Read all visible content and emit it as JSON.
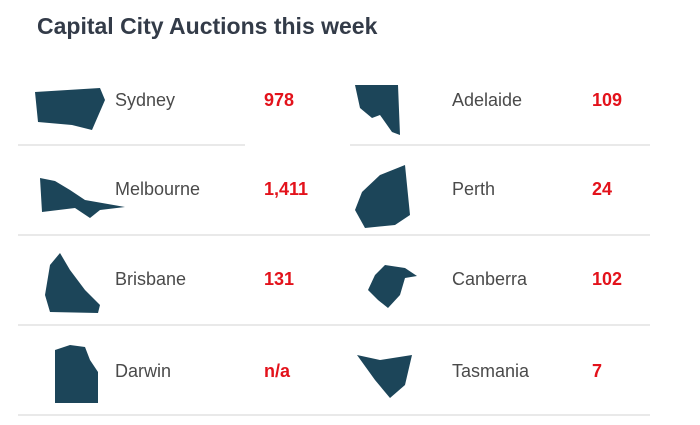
{
  "title": "Capital City Auctions this week",
  "cities": [
    {
      "name": "Sydney",
      "value": "978"
    },
    {
      "name": "Adelaide",
      "value": "109"
    },
    {
      "name": "Melbourne",
      "value": "1,411"
    },
    {
      "name": "Perth",
      "value": "24"
    },
    {
      "name": "Brisbane",
      "value": "131"
    },
    {
      "name": "Canberra",
      "value": "102"
    },
    {
      "name": "Darwin",
      "value": "n/a"
    },
    {
      "name": "Tasmania",
      "value": "7"
    }
  ]
}
